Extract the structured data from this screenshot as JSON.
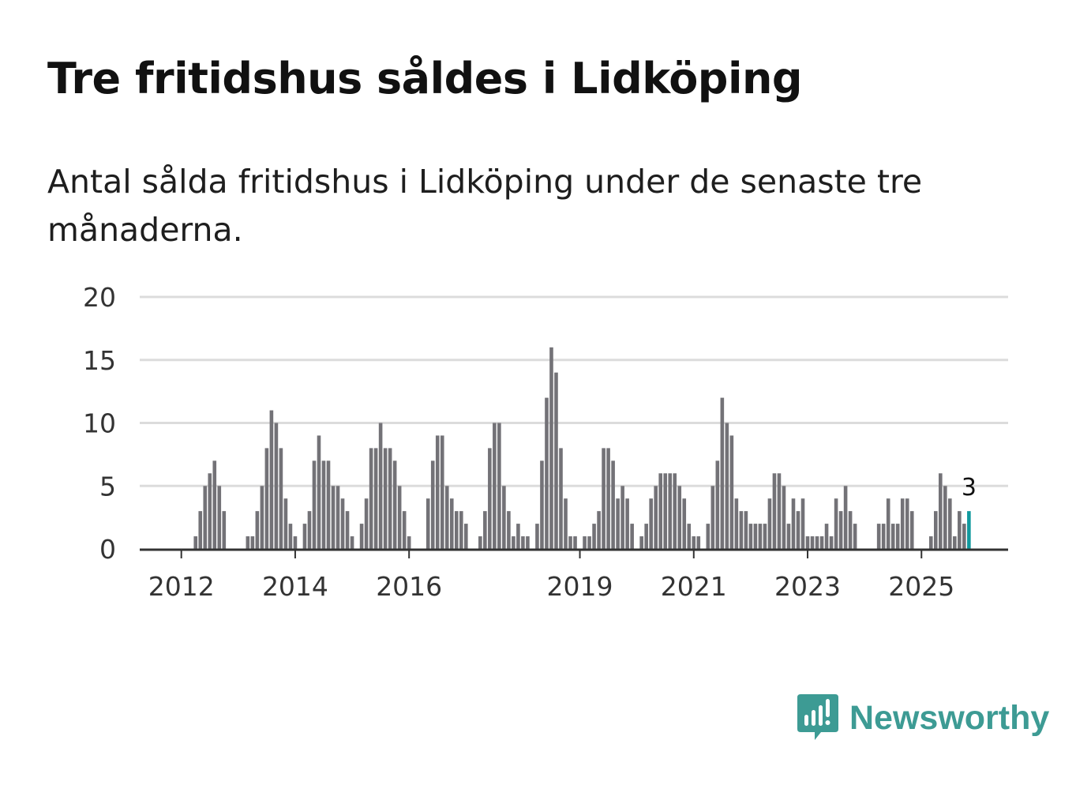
{
  "title": "Tre fritidshus såldes i Lidköping",
  "subtitle": "Antal sålda fritidshus i Lidköping under de senaste tre månaderna.",
  "brand": {
    "name": "Newsworthy",
    "color": "#3d9b94",
    "icon": "newsworthy-logo-icon"
  },
  "colors": {
    "bar": "#737277",
    "highlight": "#11999e",
    "grid": "#dcdcdc",
    "axis": "#333333"
  },
  "chart_data": {
    "type": "bar",
    "x_start": "2012-01",
    "x_unit": "month",
    "ylim": [
      0,
      20
    ],
    "yticks": [
      0,
      5,
      10,
      15,
      20
    ],
    "xticks": [
      "2012",
      "2014",
      "2016",
      "2019",
      "2021",
      "2023",
      "2025"
    ],
    "grid": true,
    "values": [
      0,
      0,
      0,
      1,
      3,
      5,
      6,
      7,
      5,
      3,
      0,
      0,
      0,
      0,
      1,
      1,
      3,
      5,
      8,
      11,
      10,
      8,
      4,
      2,
      1,
      0,
      2,
      3,
      7,
      9,
      7,
      7,
      5,
      5,
      4,
      3,
      1,
      0,
      2,
      4,
      8,
      8,
      10,
      8,
      8,
      7,
      5,
      3,
      1,
      0,
      0,
      0,
      4,
      7,
      9,
      9,
      5,
      4,
      3,
      3,
      2,
      0,
      0,
      1,
      3,
      8,
      10,
      10,
      5,
      3,
      1,
      2,
      1,
      1,
      0,
      2,
      7,
      12,
      16,
      14,
      8,
      4,
      1,
      1,
      0,
      1,
      1,
      2,
      3,
      8,
      8,
      7,
      4,
      5,
      4,
      2,
      0,
      1,
      2,
      4,
      5,
      6,
      6,
      6,
      6,
      5,
      4,
      2,
      1,
      1,
      0,
      2,
      5,
      7,
      12,
      10,
      9,
      4,
      3,
      3,
      2,
      2,
      2,
      2,
      4,
      6,
      6,
      5,
      2,
      4,
      3,
      4,
      1,
      1,
      1,
      1,
      2,
      1,
      4,
      3,
      5,
      3,
      2,
      0,
      0,
      0,
      0,
      2,
      2,
      4,
      2,
      2,
      4,
      4,
      3,
      0,
      0,
      0,
      1,
      3,
      6,
      5,
      4,
      1,
      3,
      2,
      3
    ],
    "highlight_label": "3"
  }
}
